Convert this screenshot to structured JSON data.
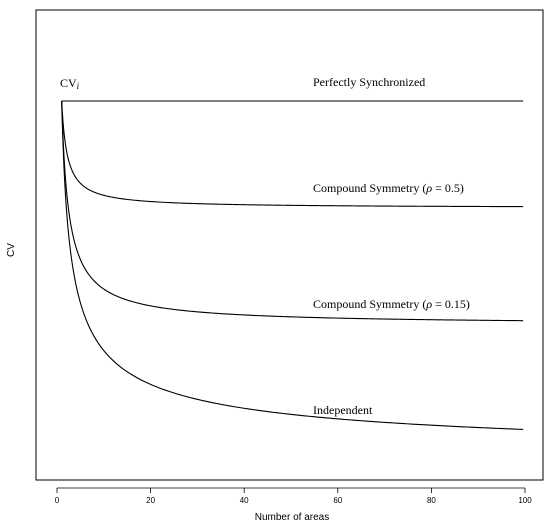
{
  "chart_data": {
    "type": "line",
    "title": "",
    "xlabel": "Number of areas",
    "ylabel": "CV",
    "xlim": [
      0,
      100
    ],
    "xticks": [
      0,
      20,
      40,
      60,
      80,
      100
    ],
    "ylim": [
      0,
      1.1
    ],
    "yticks_shown": false,
    "grid": false,
    "legend": "none",
    "start_label": "CV",
    "start_label_subscript": "i",
    "series": [
      {
        "label": "Perfectly Synchronized",
        "rho": 1.0
      },
      {
        "label": "Compound Symmetry (ρ = 0.5)",
        "rho": 0.5,
        "label_parts": [
          "Compound Symmetry (",
          "ρ",
          " = 0.5)"
        ]
      },
      {
        "label": "Compound Symmetry (ρ = 0.15)",
        "rho": 0.15,
        "label_parts": [
          "Compound Symmetry (",
          "ρ",
          " = 0.15)"
        ]
      },
      {
        "label": "Independent",
        "rho": 0.0
      }
    ]
  }
}
